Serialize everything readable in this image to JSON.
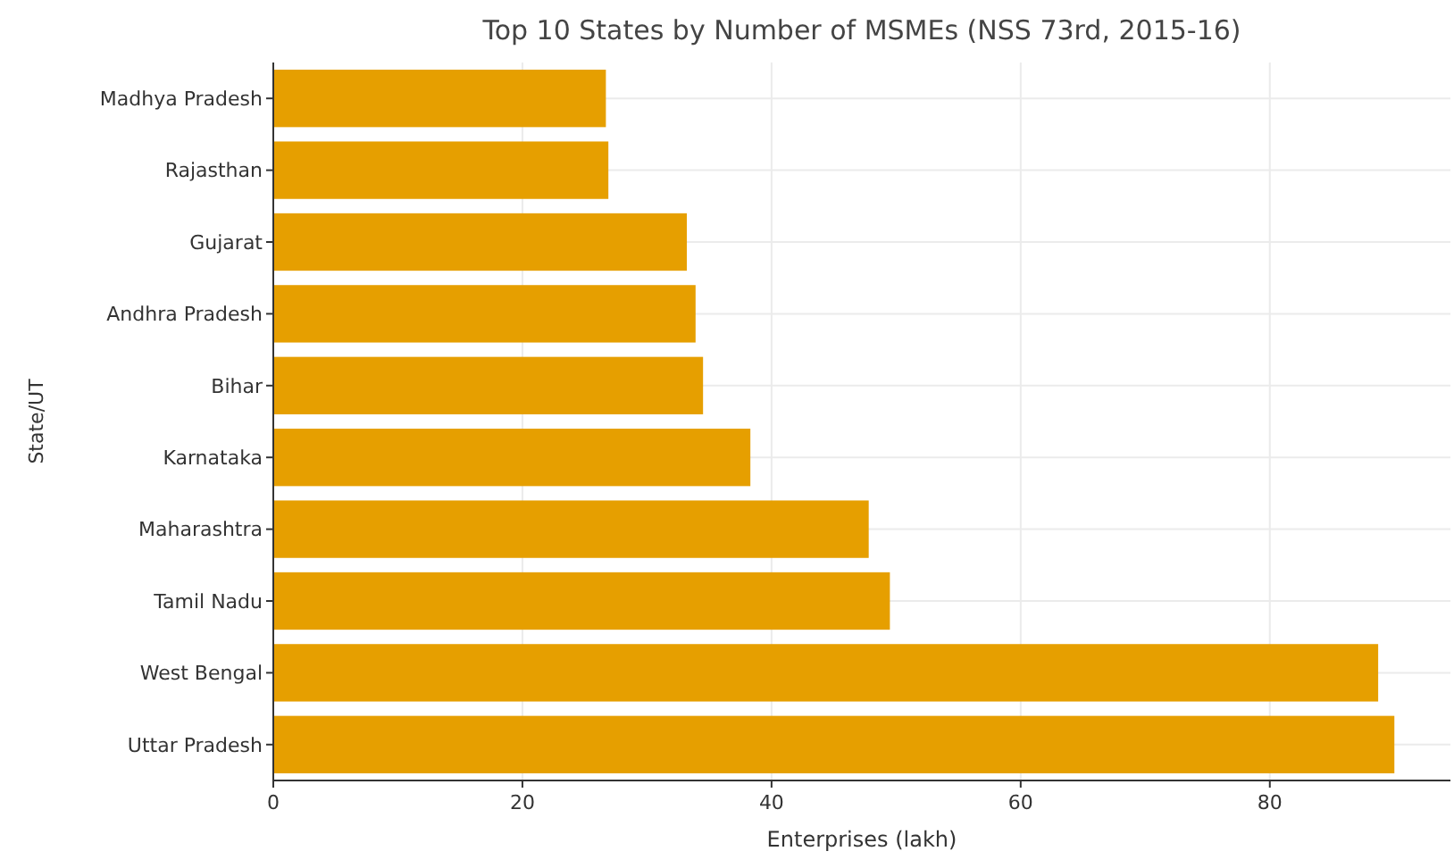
{
  "chart_data": {
    "type": "bar",
    "orientation": "horizontal",
    "title": "Top 10 States by Number of MSMEs (NSS 73rd, 2015-16)",
    "xlabel": "Enterprises (lakh)",
    "ylabel": "State/UT",
    "categories": [
      "Madhya Pradesh",
      "Rajasthan",
      "Gujarat",
      "Andhra Pradesh",
      "Bihar",
      "Karnataka",
      "Maharashtra",
      "Tamil Nadu",
      "West Bengal",
      "Uttar Pradesh"
    ],
    "values": [
      26.7,
      26.9,
      33.2,
      33.9,
      34.5,
      38.3,
      47.8,
      49.5,
      88.7,
      90.0
    ],
    "color": "#e69f00",
    "xlim": [
      0,
      94.5
    ],
    "xticks": [
      0,
      20,
      40,
      60,
      80
    ],
    "grid": true
  }
}
